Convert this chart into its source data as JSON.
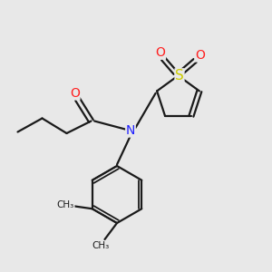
{
  "bg_color": "#e8e8e8",
  "bond_color": "#1a1a1a",
  "bond_lw": 1.6,
  "N_color": "#2020ff",
  "O_color": "#ff2020",
  "S_color": "#cccc00",
  "font_size_atom": 9,
  "fig_size": [
    3.0,
    3.0
  ],
  "dpi": 100,
  "xlim": [
    0,
    10
  ],
  "ylim": [
    0,
    10
  ]
}
